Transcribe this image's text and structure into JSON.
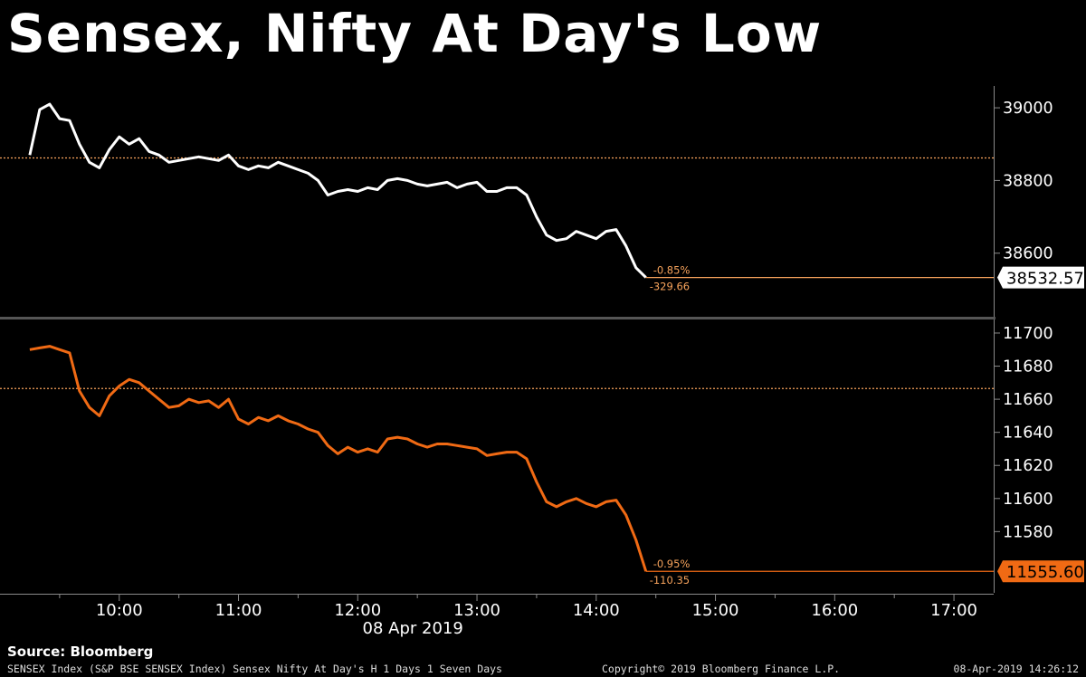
{
  "title": "Sensex, Nifty At Day's Low",
  "source": "Source: Bloomberg",
  "footer": {
    "left": "SENSEX Index (S&P BSE SENSEX Index) Sensex Nifty At Day's H 1 Days 1 Seven Days",
    "middle": "Copyright© 2019 Bloomberg Finance L.P.",
    "right": "08-Apr-2019 14:26:12"
  },
  "colors": {
    "background": "#000000",
    "sensex": "#ffffff",
    "nifty": "#f06a14",
    "reference": "#f7a35c",
    "axis": "#8a8a8a",
    "divider": "#555555"
  },
  "chart_data": [
    {
      "type": "line",
      "name": "SENSEX",
      "series": [
        {
          "name": "SENSEX",
          "color": "#ffffff",
          "x": [
            "09:15",
            "09:20",
            "09:25",
            "09:30",
            "09:35",
            "09:40",
            "09:45",
            "09:50",
            "09:55",
            "10:00",
            "10:05",
            "10:10",
            "10:15",
            "10:20",
            "10:25",
            "10:30",
            "10:35",
            "10:40",
            "10:45",
            "10:50",
            "10:55",
            "11:00",
            "11:05",
            "11:10",
            "11:15",
            "11:20",
            "11:25",
            "11:30",
            "11:35",
            "11:40",
            "11:45",
            "11:50",
            "11:55",
            "12:00",
            "12:05",
            "12:10",
            "12:15",
            "12:20",
            "12:25",
            "12:30",
            "12:35",
            "12:40",
            "12:45",
            "12:50",
            "12:55",
            "13:00",
            "13:05",
            "13:10",
            "13:15",
            "13:20",
            "13:25",
            "13:30",
            "13:35",
            "13:40",
            "13:45",
            "13:50",
            "13:55",
            "14:00",
            "14:05",
            "14:10",
            "14:15",
            "14:20",
            "14:25"
          ],
          "y": [
            38870,
            38995,
            39010,
            38970,
            38965,
            38900,
            38850,
            38835,
            38885,
            38920,
            38900,
            38915,
            38880,
            38870,
            38850,
            38855,
            38860,
            38865,
            38860,
            38855,
            38870,
            38840,
            38830,
            38840,
            38835,
            38850,
            38840,
            38830,
            38820,
            38800,
            38760,
            38770,
            38775,
            38770,
            38780,
            38775,
            38800,
            38805,
            38800,
            38790,
            38785,
            38790,
            38795,
            38780,
            38790,
            38795,
            38770,
            38770,
            38780,
            38780,
            38760,
            38700,
            38650,
            38635,
            38640,
            38660,
            38650,
            38640,
            38660,
            38665,
            38620,
            38560,
            38533
          ]
        }
      ],
      "yticks": [
        38600,
        38800,
        39000
      ],
      "ylim": [
        38430,
        39060
      ],
      "reference_line": 38862,
      "last_value": "38532.57",
      "change_pct": "-0.85%",
      "change_abs": "-329.66"
    },
    {
      "type": "line",
      "name": "NIFTY",
      "series": [
        {
          "name": "NIFTY",
          "color": "#f06a14",
          "x": [
            "09:15",
            "09:20",
            "09:25",
            "09:30",
            "09:35",
            "09:40",
            "09:45",
            "09:50",
            "09:55",
            "10:00",
            "10:05",
            "10:10",
            "10:15",
            "10:20",
            "10:25",
            "10:30",
            "10:35",
            "10:40",
            "10:45",
            "10:50",
            "10:55",
            "11:00",
            "11:05",
            "11:10",
            "11:15",
            "11:20",
            "11:25",
            "11:30",
            "11:35",
            "11:40",
            "11:45",
            "11:50",
            "11:55",
            "12:00",
            "12:05",
            "12:10",
            "12:15",
            "12:20",
            "12:25",
            "12:30",
            "12:35",
            "12:40",
            "12:45",
            "12:50",
            "12:55",
            "13:00",
            "13:05",
            "13:10",
            "13:15",
            "13:20",
            "13:25",
            "13:30",
            "13:35",
            "13:40",
            "13:45",
            "13:50",
            "13:55",
            "14:00",
            "14:05",
            "14:10",
            "14:15",
            "14:20",
            "14:25"
          ],
          "y": [
            11690,
            11691,
            11692,
            11690,
            11688,
            11665,
            11655,
            11650,
            11662,
            11668,
            11672,
            11670,
            11665,
            11660,
            11655,
            11656,
            11660,
            11658,
            11659,
            11655,
            11660,
            11648,
            11645,
            11649,
            11647,
            11650,
            11647,
            11645,
            11642,
            11640,
            11632,
            11627,
            11631,
            11628,
            11630,
            11628,
            11636,
            11637,
            11636,
            11633,
            11631,
            11633,
            11633,
            11632,
            11631,
            11630,
            11626,
            11627,
            11628,
            11628,
            11624,
            11610,
            11598,
            11595,
            11598,
            11600,
            11597,
            11595,
            11598,
            11599,
            11590,
            11575,
            11556
          ]
        }
      ],
      "yticks": [
        11580,
        11600,
        11620,
        11640,
        11660,
        11680,
        11700
      ],
      "ylim": [
        11543,
        11706
      ],
      "reference_line": 11666.5,
      "last_value": "11555.60",
      "change_pct": "-0.95%",
      "change_abs": "-110.35"
    }
  ],
  "xaxis": {
    "ticks": [
      "10:00",
      "11:00",
      "12:00",
      "13:00",
      "14:00",
      "15:00",
      "16:00",
      "17:00"
    ],
    "date_label": "08 Apr 2019",
    "range": [
      "09:00",
      "17:20"
    ]
  }
}
